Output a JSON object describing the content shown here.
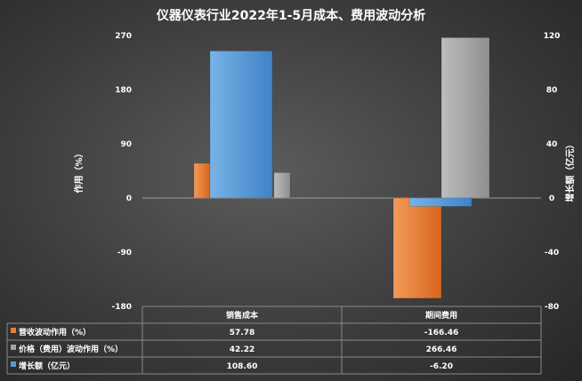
{
  "chart_data": {
    "type": "bar",
    "title": "仪器仪表行业2022年1-5月成本、费用波动分析",
    "categories": [
      "销售成本",
      "期间费用"
    ],
    "series": [
      {
        "name": "营收波动作用（%）",
        "axis": "left",
        "color": "#ed7d31",
        "values": [
          57.78,
          -166.46
        ],
        "labels": [
          "57.78",
          "-166.46"
        ]
      },
      {
        "name": "增长额（亿元）",
        "axis": "right",
        "color": "#5b9bd5",
        "values": [
          108.6,
          -6.2
        ],
        "labels": [
          "108.60",
          "-6.20"
        ]
      },
      {
        "name": "价格（费用）波动作用（%）",
        "axis": "left",
        "color": "#a5a5a5",
        "values": [
          42.22,
          266.46
        ],
        "labels": [
          "42.22",
          "266.46"
        ]
      }
    ],
    "table_order": [
      0,
      2,
      1
    ],
    "y_left": {
      "label": "作用（%）",
      "min": -180,
      "max": 270,
      "ticks": [
        -180,
        -90,
        0,
        90,
        180,
        270
      ]
    },
    "y_right": {
      "label": "增长额（亿元）",
      "min": -80,
      "max": 120,
      "ticks": [
        -80,
        -40,
        0,
        40,
        80,
        120
      ]
    },
    "legend": "data-table-bottom",
    "grid": false
  }
}
